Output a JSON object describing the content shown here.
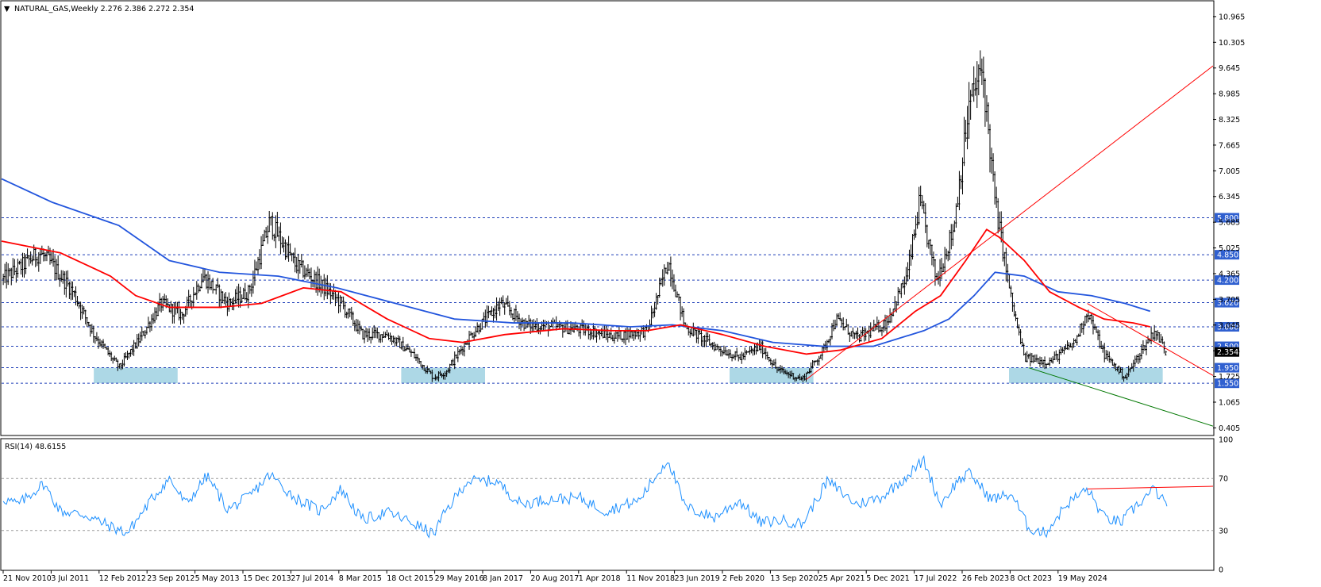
{
  "header": {
    "caret": "▼",
    "title": "NATURAL_GAS,Weekly  2.276 2.386 2.272 2.354"
  },
  "rsi_header": "RSI(14) 48.6155",
  "colors": {
    "candle": "#000000",
    "ma_fast": "#ff0000",
    "ma_slow": "#2255dd",
    "zones": "#add8e6",
    "level_lines": "#1f3fb8",
    "rsi_line": "#1e90ff",
    "label_box": "#3060d0",
    "current_box": "#000000",
    "green_trend": "#007700"
  },
  "chart_data": [
    {
      "type": "candlestick",
      "symbol": "NATURAL_GAS",
      "timeframe": "Weekly",
      "last_bar": {
        "open": 2.276,
        "high": 2.386,
        "low": 2.272,
        "close": 2.354
      },
      "y_range": [
        0.23,
        11.35
      ],
      "x_ticks": [
        "21 Nov 2010",
        "3 Jul 2011",
        "12 Feb 2012",
        "23 Sep 2012",
        "5 May 2013",
        "15 Dec 2013",
        "27 Jul 2014",
        "8 Mar 2015",
        "18 Oct 2015",
        "29 May 2016",
        "8 Jan 2017",
        "20 Aug 2017",
        "1 Apr 2018",
        "11 Nov 2018",
        "23 Jun 2019",
        "2 Feb 2020",
        "13 Sep 2020",
        "25 Apr 2021",
        "5 Dec 2021",
        "17 Jul 2022",
        "26 Feb 2023",
        "8 Oct 2023",
        "19 May 2024"
      ],
      "y_ticks": [
        "10.965",
        "10.305",
        "9.645",
        "8.985",
        "8.325",
        "7.665",
        "7.005",
        "6.345",
        "5.685",
        "5.025",
        "4.365",
        "3.705",
        "3.045",
        "2.385",
        "1.725",
        "1.065",
        "0.405"
      ],
      "horizontal_levels": [
        5.8,
        4.85,
        4.2,
        3.62,
        3.0,
        2.5,
        1.95,
        1.55
      ],
      "level_labels": [
        "5.800",
        "4.850",
        "4.200",
        "3.620",
        "3.000",
        "2.500",
        "1.950",
        "1.550"
      ],
      "current_price": 2.354,
      "current_price_label": "2.354",
      "support_zones": [
        {
          "from": "2012-01",
          "to": "2013-01",
          "low": 1.55,
          "high": 1.95
        },
        {
          "from": "2015-09",
          "to": "2016-09",
          "low": 1.55,
          "high": 1.95
        },
        {
          "from": "2019-08",
          "to": "2020-08",
          "low": 1.55,
          "high": 1.95
        },
        {
          "from": "2022-12",
          "to": "2024-10",
          "low": 1.55,
          "high": 1.95
        }
      ],
      "price_path": [
        [
          2010.9,
          4.2
        ],
        [
          2011.1,
          4.5
        ],
        [
          2011.35,
          4.9
        ],
        [
          2011.5,
          4.6
        ],
        [
          2011.75,
          3.9
        ],
        [
          2012.0,
          2.8
        ],
        [
          2012.3,
          1.95
        ],
        [
          2012.55,
          2.7
        ],
        [
          2012.8,
          3.6
        ],
        [
          2013.05,
          3.3
        ],
        [
          2013.3,
          4.3
        ],
        [
          2013.6,
          3.6
        ],
        [
          2013.85,
          3.9
        ],
        [
          2014.1,
          5.7
        ],
        [
          2014.4,
          4.6
        ],
        [
          2014.7,
          4.1
        ],
        [
          2014.95,
          3.6
        ],
        [
          2015.2,
          2.8
        ],
        [
          2015.5,
          2.8
        ],
        [
          2015.8,
          2.3
        ],
        [
          2016.05,
          1.7
        ],
        [
          2016.2,
          1.85
        ],
        [
          2016.5,
          2.8
        ],
        [
          2016.85,
          3.6
        ],
        [
          2017.15,
          3.05
        ],
        [
          2017.5,
          3.0
        ],
        [
          2017.9,
          2.9
        ],
        [
          2018.2,
          2.75
        ],
        [
          2018.6,
          2.9
        ],
        [
          2018.85,
          4.7
        ],
        [
          2019.05,
          3.0
        ],
        [
          2019.4,
          2.5
        ],
        [
          2019.7,
          2.2
        ],
        [
          2019.95,
          2.5
        ],
        [
          2020.15,
          1.9
        ],
        [
          2020.45,
          1.65
        ],
        [
          2020.7,
          2.4
        ],
        [
          2020.85,
          3.2
        ],
        [
          2021.1,
          2.7
        ],
        [
          2021.45,
          3.1
        ],
        [
          2021.7,
          4.3
        ],
        [
          2021.85,
          6.2
        ],
        [
          2022.05,
          4.2
        ],
        [
          2022.25,
          5.5
        ],
        [
          2022.45,
          8.8
        ],
        [
          2022.6,
          9.6
        ],
        [
          2022.75,
          6.2
        ],
        [
          2022.95,
          3.6
        ],
        [
          2023.1,
          2.2
        ],
        [
          2023.4,
          2.1
        ],
        [
          2023.7,
          2.6
        ],
        [
          2023.85,
          3.4
        ],
        [
          2024.05,
          2.3
        ],
        [
          2024.3,
          1.7
        ],
        [
          2024.5,
          2.4
        ],
        [
          2024.65,
          2.9
        ],
        [
          2024.8,
          2.35
        ]
      ],
      "ma_fast": [
        [
          2010.9,
          5.2
        ],
        [
          2011.6,
          4.9
        ],
        [
          2012.2,
          4.3
        ],
        [
          2012.5,
          3.8
        ],
        [
          2012.9,
          3.5
        ],
        [
          2013.5,
          3.5
        ],
        [
          2014.0,
          3.6
        ],
        [
          2014.5,
          4.0
        ],
        [
          2014.95,
          3.9
        ],
        [
          2015.5,
          3.2
        ],
        [
          2016.0,
          2.7
        ],
        [
          2016.4,
          2.6
        ],
        [
          2016.9,
          2.8
        ],
        [
          2017.6,
          2.95
        ],
        [
          2018.2,
          2.9
        ],
        [
          2018.6,
          2.9
        ],
        [
          2019.0,
          3.05
        ],
        [
          2019.5,
          2.8
        ],
        [
          2020.0,
          2.5
        ],
        [
          2020.5,
          2.3
        ],
        [
          2020.9,
          2.4
        ],
        [
          2021.4,
          2.7
        ],
        [
          2021.8,
          3.4
        ],
        [
          2022.1,
          3.8
        ],
        [
          2022.4,
          4.7
        ],
        [
          2022.65,
          5.5
        ],
        [
          2022.8,
          5.3
        ],
        [
          2023.1,
          4.7
        ],
        [
          2023.4,
          3.9
        ],
        [
          2023.75,
          3.5
        ],
        [
          2024.05,
          3.2
        ],
        [
          2024.4,
          3.1
        ],
        [
          2024.6,
          3.0
        ]
      ],
      "ma_slow": [
        [
          2010.9,
          6.8
        ],
        [
          2011.5,
          6.2
        ],
        [
          2012.3,
          5.6
        ],
        [
          2012.9,
          4.7
        ],
        [
          2013.5,
          4.4
        ],
        [
          2014.2,
          4.3
        ],
        [
          2014.9,
          4.0
        ],
        [
          2015.6,
          3.6
        ],
        [
          2016.3,
          3.2
        ],
        [
          2017.0,
          3.1
        ],
        [
          2017.7,
          3.1
        ],
        [
          2018.4,
          3.0
        ],
        [
          2018.9,
          3.05
        ],
        [
          2019.5,
          2.9
        ],
        [
          2020.1,
          2.6
        ],
        [
          2020.7,
          2.5
        ],
        [
          2021.3,
          2.5
        ],
        [
          2021.9,
          2.9
        ],
        [
          2022.2,
          3.2
        ],
        [
          2022.5,
          3.8
        ],
        [
          2022.75,
          4.4
        ],
        [
          2023.1,
          4.3
        ],
        [
          2023.5,
          3.9
        ],
        [
          2023.9,
          3.8
        ],
        [
          2024.3,
          3.6
        ],
        [
          2024.6,
          3.4
        ]
      ],
      "trendlines": [
        {
          "color": "red",
          "from": [
            2020.5,
            1.65
          ],
          "to": [
            2025.35,
            9.7
          ]
        },
        {
          "color": "red",
          "from": [
            2023.85,
            3.6
          ],
          "to": [
            2025.35,
            1.75
          ]
        },
        {
          "color": "green",
          "from": [
            2023.15,
            1.95
          ],
          "to": [
            2025.35,
            0.45
          ]
        }
      ]
    },
    {
      "type": "line",
      "indicator": "RSI(14)",
      "last_value": 48.6155,
      "y_range": [
        0,
        100
      ],
      "y_ticks": [
        "100",
        "70",
        "30",
        "0"
      ],
      "levels": [
        70,
        30
      ],
      "values": [
        [
          2010.9,
          55
        ],
        [
          2011.1,
          50
        ],
        [
          2011.4,
          66
        ],
        [
          2011.6,
          45
        ],
        [
          2011.9,
          42
        ],
        [
          2012.2,
          33
        ],
        [
          2012.4,
          28
        ],
        [
          2012.7,
          55
        ],
        [
          2012.9,
          70
        ],
        [
          2013.1,
          50
        ],
        [
          2013.35,
          72
        ],
        [
          2013.6,
          46
        ],
        [
          2013.85,
          56
        ],
        [
          2014.1,
          73
        ],
        [
          2014.4,
          55
        ],
        [
          2014.7,
          45
        ],
        [
          2014.95,
          62
        ],
        [
          2015.2,
          38
        ],
        [
          2015.5,
          44
        ],
        [
          2015.8,
          36
        ],
        [
          2016.05,
          27
        ],
        [
          2016.2,
          45
        ],
        [
          2016.45,
          68
        ],
        [
          2016.8,
          68
        ],
        [
          2017.1,
          50
        ],
        [
          2017.4,
          54
        ],
        [
          2017.8,
          55
        ],
        [
          2018.1,
          45
        ],
        [
          2018.5,
          53
        ],
        [
          2018.85,
          85
        ],
        [
          2019.05,
          48
        ],
        [
          2019.4,
          40
        ],
        [
          2019.7,
          53
        ],
        [
          2019.95,
          36
        ],
        [
          2020.2,
          38
        ],
        [
          2020.45,
          35
        ],
        [
          2020.75,
          68
        ],
        [
          2021.1,
          50
        ],
        [
          2021.4,
          56
        ],
        [
          2021.7,
          72
        ],
        [
          2021.9,
          84
        ],
        [
          2022.1,
          50
        ],
        [
          2022.3,
          68
        ],
        [
          2022.45,
          74
        ],
        [
          2022.7,
          54
        ],
        [
          2022.95,
          58
        ],
        [
          2023.15,
          32
        ],
        [
          2023.35,
          28
        ],
        [
          2023.6,
          50
        ],
        [
          2023.85,
          62
        ],
        [
          2024.05,
          40
        ],
        [
          2024.25,
          36
        ],
        [
          2024.45,
          50
        ],
        [
          2024.65,
          62
        ],
        [
          2024.8,
          48.6
        ]
      ],
      "trendline": {
        "from": [
          2023.85,
          62
        ],
        "to": [
          2025.35,
          64
        ]
      }
    }
  ]
}
